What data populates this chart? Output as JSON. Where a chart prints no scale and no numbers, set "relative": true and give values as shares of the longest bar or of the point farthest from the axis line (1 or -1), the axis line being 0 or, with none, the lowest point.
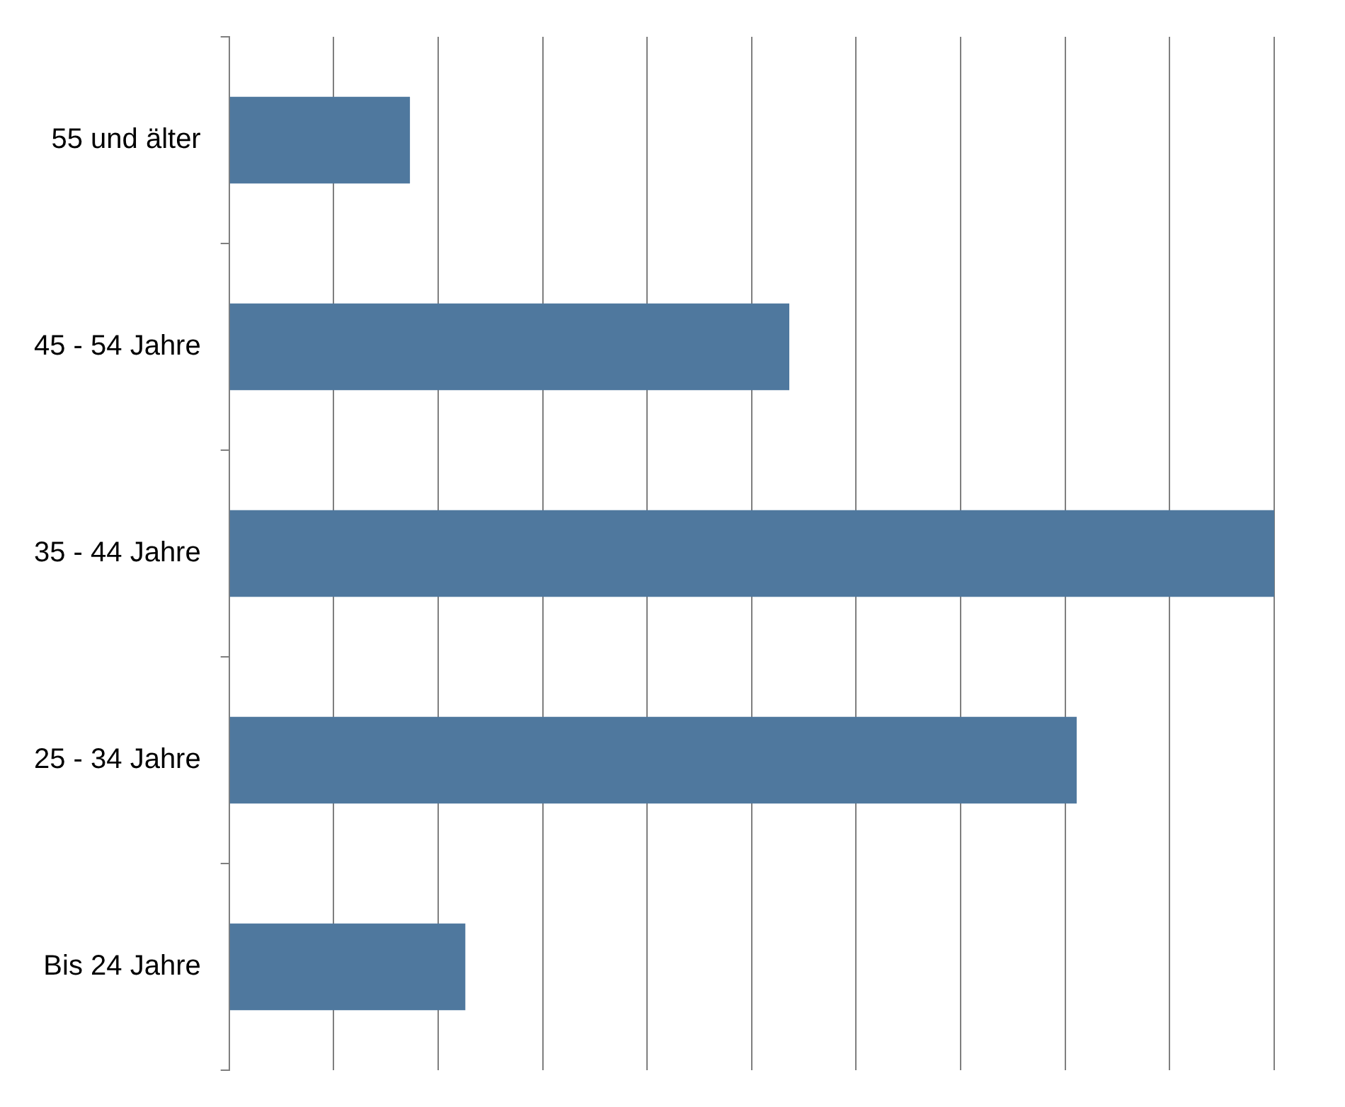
{
  "chart_data": {
    "type": "bar",
    "orientation": "horizontal",
    "relative": true,
    "grid": "x",
    "categories": [
      "55 und älter",
      "45 - 54 Jahre",
      "35 - 44 Jahre",
      "25 - 34 Jahre",
      "Bis 24 Jahre"
    ],
    "values": [
      0.173,
      0.536,
      1,
      0.811,
      0.226
    ],
    "color": "#4f789e"
  }
}
